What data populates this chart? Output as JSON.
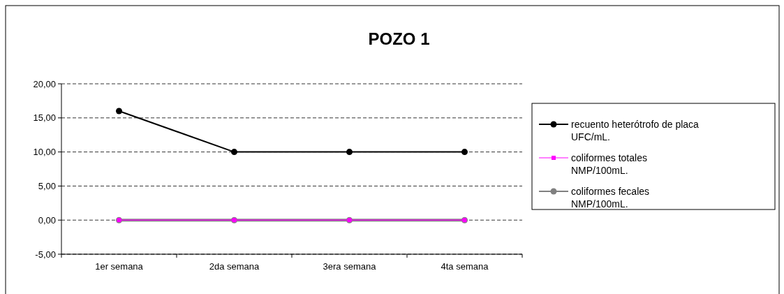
{
  "chart_data": {
    "type": "line",
    "title": "POZO  1",
    "categories": [
      "1er semana",
      "2da semana",
      "3era semana",
      "4ta semana"
    ],
    "series": [
      {
        "name": "recuento heterótrofo de placa UFC/mL.",
        "color": "#000000",
        "values": [
          16,
          10,
          10,
          10
        ],
        "marker": "circle"
      },
      {
        "name": "coliformes totales NMP/100mL.",
        "color": "#ff00ff",
        "values": [
          0,
          0,
          0,
          0
        ],
        "marker": "square"
      },
      {
        "name": "coliformes fecales NMP/100mL.",
        "color": "#808080",
        "values": [
          0,
          0,
          0,
          0
        ],
        "marker": "circle"
      }
    ],
    "ylim": [
      -5,
      20
    ],
    "yticks": [
      {
        "value": -5,
        "label": "-5,00"
      },
      {
        "value": 0,
        "label": "0,00"
      },
      {
        "value": 5,
        "label": "5,00"
      },
      {
        "value": 10,
        "label": "10,00"
      },
      {
        "value": 15,
        "label": "15,00"
      },
      {
        "value": 20,
        "label": "20,00"
      }
    ],
    "grid": "y",
    "line_style": "solid",
    "legend": "right"
  }
}
